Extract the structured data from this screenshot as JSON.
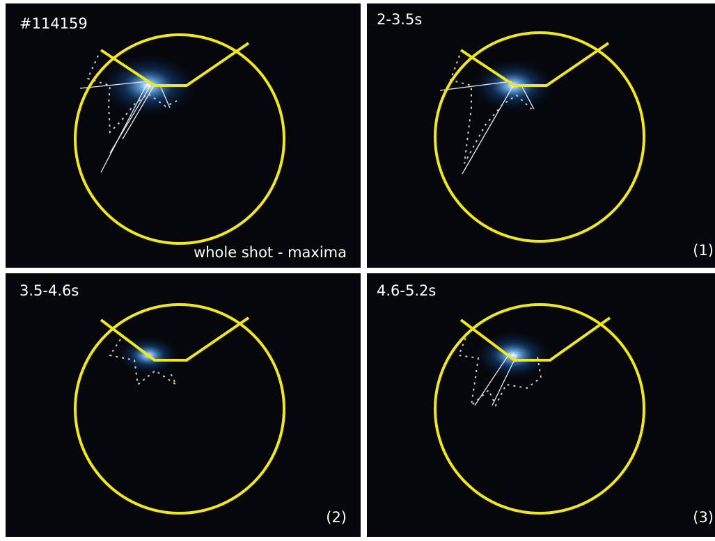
{
  "panels": [
    {
      "label": "#114159",
      "caption": "whole shot - maxima"
    },
    {
      "label": "2-3.5s",
      "caption": "(1)"
    },
    {
      "label": "3.5-4.6s",
      "caption": "(2)"
    },
    {
      "label": "4.6-5.2s",
      "caption": "(3)"
    }
  ]
}
